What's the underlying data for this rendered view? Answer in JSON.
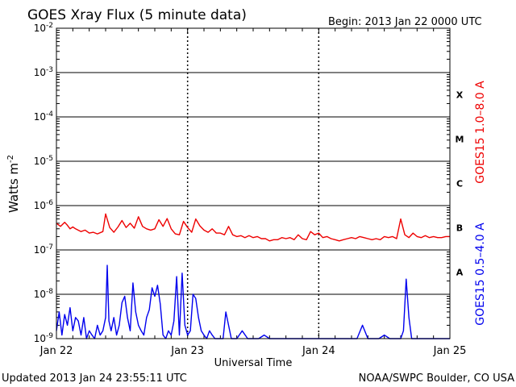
{
  "title": "GOES Xray Flux (5 minute data)",
  "begin_label": "Begin:  2013 Jan 22 0000 UTC",
  "ylabel": "Watts m",
  "ylabel_exp": "-2",
  "xlabel": "Universal Time",
  "updated": "Updated 2013 Jan 24 23:55:11 UTC",
  "credit": "NOAA/SWPC Boulder, CO USA",
  "colors": {
    "long": "#ee0000",
    "short": "#0000ee",
    "grid": "#000000"
  },
  "chart_data": {
    "type": "line",
    "log_y": true,
    "ylim": [
      1e-09,
      0.01
    ],
    "y_ticks": [
      {
        "base": "10",
        "exp": "-9"
      },
      {
        "base": "10",
        "exp": "-8"
      },
      {
        "base": "10",
        "exp": "-7"
      },
      {
        "base": "10",
        "exp": "-6"
      },
      {
        "base": "10",
        "exp": "-5"
      },
      {
        "base": "10",
        "exp": "-4"
      },
      {
        "base": "10",
        "exp": "-3"
      },
      {
        "base": "10",
        "exp": "-2"
      }
    ],
    "x_ticks": [
      "Jan 22",
      "Jan 23",
      "Jan 24",
      "Jan 25"
    ],
    "flare_classes": [
      {
        "label": "A",
        "exp": -8
      },
      {
        "label": "B",
        "exp": -7
      },
      {
        "label": "C",
        "exp": -6
      },
      {
        "label": "M",
        "exp": -5
      },
      {
        "label": "X",
        "exp": -4
      }
    ],
    "series": [
      {
        "name": "GOES15 1.0–8.0 A",
        "x_hours": [
          0,
          0.75,
          1.5,
          2,
          2.5,
          3,
          3.5,
          4.5,
          5.25,
          6,
          6.75,
          7.5,
          8.5,
          9,
          9.75,
          10.5,
          11.25,
          12,
          12.75,
          13.5,
          14.25,
          15,
          15.75,
          16.5,
          17.25,
          18,
          18.75,
          19.5,
          20.25,
          21,
          21.75,
          22.5,
          23.25,
          24,
          24.75,
          25.5,
          26.25,
          27,
          27.75,
          28.5,
          29.25,
          30,
          30.75,
          31.5,
          32.25,
          33,
          33.75,
          34.5,
          35.25,
          36,
          36.75,
          37.5,
          38.25,
          39,
          39.75,
          40.5,
          41.25,
          42,
          42.75,
          43.5,
          44.25,
          45,
          45.75,
          46.5,
          47.25,
          48,
          48.75,
          49.5,
          50.25,
          51,
          51.75,
          52.5,
          53.25,
          54,
          54.75,
          55.5,
          56.25,
          57,
          57.75,
          58.5,
          59.25,
          60,
          60.75,
          61.5,
          62.25,
          63,
          63.75,
          64.5,
          65.25,
          66,
          66.75,
          67.5,
          68.25,
          69,
          69.75,
          70.5,
          71.25,
          72
        ],
        "values": [
          4e-07,
          3.4e-07,
          4.2e-07,
          3.6e-07,
          3e-07,
          3.3e-07,
          3e-07,
          2.6e-07,
          2.8e-07,
          2.4e-07,
          2.5e-07,
          2.3e-07,
          2.6e-07,
          6.5e-07,
          3.2e-07,
          2.5e-07,
          3.3e-07,
          4.6e-07,
          3.2e-07,
          4e-07,
          3.1e-07,
          5.6e-07,
          3.4e-07,
          3e-07,
          2.8e-07,
          3e-07,
          4.8e-07,
          3.4e-07,
          5.1e-07,
          3e-07,
          2.3e-07,
          2.2e-07,
          4.4e-07,
          3.2e-07,
          2.5e-07,
          5e-07,
          3.5e-07,
          2.8e-07,
          2.5e-07,
          3e-07,
          2.4e-07,
          2.4e-07,
          2.2e-07,
          3.4e-07,
          2.2e-07,
          2e-07,
          2.1e-07,
          1.9e-07,
          2.1e-07,
          1.9e-07,
          2e-07,
          1.8e-07,
          1.8e-07,
          1.6e-07,
          1.7e-07,
          1.7e-07,
          1.9e-07,
          1.8e-07,
          1.9e-07,
          1.7e-07,
          2.2e-07,
          1.8e-07,
          1.7e-07,
          2.6e-07,
          2.2e-07,
          2.4e-07,
          1.9e-07,
          2e-07,
          1.8e-07,
          1.7e-07,
          1.6e-07,
          1.7e-07,
          1.8e-07,
          1.9e-07,
          1.8e-07,
          2e-07,
          1.9e-07,
          1.8e-07,
          1.7e-07,
          1.8e-07,
          1.7e-07,
          2e-07,
          1.9e-07,
          2e-07,
          1.8e-07,
          5e-07,
          2.2e-07,
          1.9e-07,
          2.4e-07,
          2e-07,
          1.9e-07,
          2.1e-07,
          1.9e-07,
          2e-07,
          1.9e-07,
          1.9e-07,
          2e-07,
          2e-07
        ]
      },
      {
        "name": "GOES15 0.5–4.0 A",
        "x_hours": [
          0,
          0.5,
          1,
          1.5,
          2,
          2.5,
          3,
          3.5,
          4,
          4.5,
          5,
          5.5,
          6,
          6.5,
          7,
          7.5,
          8,
          8.5,
          9,
          9.3,
          9.6,
          10,
          10.5,
          11,
          11.5,
          12,
          12.5,
          13,
          13.5,
          14,
          14.5,
          15,
          15.5,
          16,
          16.5,
          17,
          17.5,
          18,
          18.5,
          19,
          19.5,
          20,
          20.5,
          21,
          21.5,
          22,
          22.5,
          23,
          23.5,
          24,
          24.5,
          25,
          25.5,
          26,
          26.5,
          27,
          27.5,
          28,
          28.5,
          29,
          29.5,
          30,
          30.5,
          31,
          32,
          33,
          34,
          35,
          36,
          37,
          38,
          39,
          40,
          41,
          42,
          43,
          44,
          45,
          46,
          47,
          48,
          49,
          50,
          51,
          52,
          53,
          54,
          55,
          56,
          57,
          58,
          59,
          60,
          61,
          62,
          63,
          63.5,
          64,
          64.5,
          65,
          66,
          67,
          68,
          69,
          70,
          71,
          72
        ],
        "values": [
          1.5e-09,
          4e-09,
          1.2e-09,
          3.5e-09,
          2e-09,
          5e-09,
          1.5e-09,
          3e-09,
          2.5e-09,
          1.2e-09,
          3e-09,
          1e-09,
          1.5e-09,
          1.2e-09,
          1e-09,
          2e-09,
          1.2e-09,
          1.5e-09,
          3e-09,
          4.5e-08,
          2.5e-09,
          1.5e-09,
          3e-09,
          1.2e-09,
          2e-09,
          6.5e-09,
          9e-09,
          3e-09,
          1.5e-09,
          1.8e-08,
          4e-09,
          2e-09,
          1.5e-09,
          1.2e-09,
          3e-09,
          4.5e-09,
          1.4e-08,
          9e-09,
          1.6e-08,
          6e-09,
          1.2e-09,
          1e-09,
          1.5e-09,
          1.2e-09,
          2.5e-09,
          2.5e-08,
          1.2e-09,
          3e-08,
          2e-09,
          1.2e-09,
          1.5e-09,
          1e-08,
          8e-09,
          3e-09,
          1.5e-09,
          1.2e-09,
          1e-09,
          1.5e-09,
          1.2e-09,
          1e-09,
          1e-09,
          1e-09,
          1e-09,
          4e-09,
          1e-09,
          1e-09,
          1.5e-09,
          1e-09,
          1e-09,
          1e-09,
          1.2e-09,
          1e-09,
          1e-09,
          1e-09,
          1e-09,
          1e-09,
          1e-09,
          1e-09,
          1e-09,
          1e-09,
          1e-09,
          1e-09,
          1e-09,
          1e-09,
          1e-09,
          1e-09,
          1e-09,
          1e-09,
          2e-09,
          1e-09,
          1e-09,
          1e-09,
          1.2e-09,
          1e-09,
          1e-09,
          1e-09,
          1.5e-09,
          2.2e-08,
          3e-09,
          1e-09,
          1e-09,
          1e-09,
          1e-09,
          1e-09,
          1e-09,
          1e-09,
          1e-09
        ]
      }
    ]
  }
}
